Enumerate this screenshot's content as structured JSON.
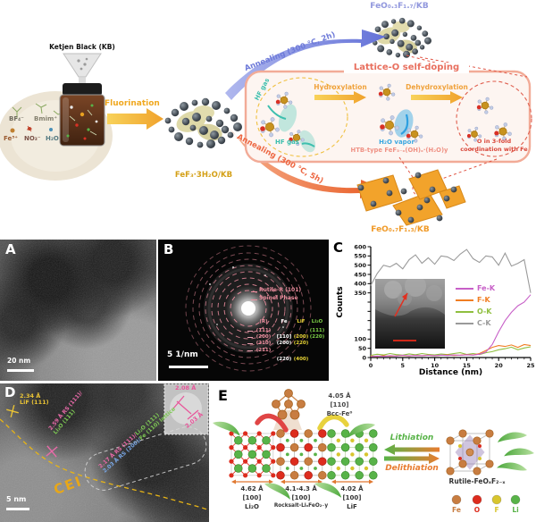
{
  "schematic": {
    "kb_label": "Ketjen Black (KB)",
    "ion_bf4": "BF₄⁻",
    "ion_bmim": "Bmim⁺",
    "ion_fe": "Fe³⁺",
    "ion_no3": "NO₃⁻",
    "ion_h2o": "H₂O",
    "fluorination": "Fluorination",
    "fef3_label": "FeF₃·3H₂O/KB",
    "anneal_top": "Annealing (300 ℃, 2h)",
    "product_top": "FeO₀.₃F₁.₇/KB",
    "anneal_bottom": "Annealing (300 ℃, 5h)",
    "product_bottom": "FeO₀.₇F₁.₃/KB",
    "box_title": "Lattice-O self-doping",
    "hf_gas_1": "HF gas",
    "hf_gas_2": "HF gas",
    "hydroxylation": "Hydroxylation",
    "dehydroxylation": "Dehydroxylation",
    "h2o_vapor": "H₂O vapor",
    "htb": "HTB-type FeF₃₋ₓ(OH)ₓ·(H₂O)y",
    "o_coord_1": "O in 3-fold",
    "o_coord_2": "coordination with Fe"
  },
  "panel_a": {
    "label": "A",
    "scalebar": "20 nm"
  },
  "panel_b": {
    "label": "B",
    "scalebar": "5 1/nm",
    "ring_note_1": "Rutile-R (101)",
    "ring_note_2": "Spinel Phase",
    "table_headers": {
      "r": "(R)",
      "fe": "Fe",
      "lif": "LiF",
      "li2o": "Li₂O"
    },
    "table_rows": [
      {
        "r": "(111)",
        "fe": "",
        "lif": "",
        "li2o": "(111)"
      },
      {
        "r": "(200)",
        "fe": "[110]",
        "lif": "(200)",
        "li2o": "(220)"
      },
      {
        "r": "(210)",
        "fe": "(200)",
        "lif": "(220)",
        "li2o": ""
      },
      {
        "r": "(211)",
        "fe": "",
        "lif": "",
        "li2o": ""
      },
      {
        "r": "",
        "fe": "(220)",
        "lif": "(400)",
        "li2o": ""
      }
    ]
  },
  "chart_data": {
    "type": "line",
    "panel": "C",
    "xlabel": "Distance (nm)",
    "ylabel": "Counts",
    "xlim": [
      0,
      25
    ],
    "ylim": [
      0,
      600
    ],
    "xticks": [
      0,
      5,
      10,
      15,
      20,
      25
    ],
    "ytick_step": 50,
    "ytick_labels_shown": [
      600,
      550,
      500,
      450,
      400,
      350,
      100,
      50,
      0
    ],
    "legend_position": "right-middle",
    "x": [
      0,
      1,
      2,
      3,
      4,
      5,
      6,
      7,
      8,
      9,
      10,
      11,
      12,
      13,
      14,
      15,
      16,
      17,
      18,
      19,
      20,
      21,
      22,
      23,
      24,
      25
    ],
    "series": [
      {
        "name": "Fe-K",
        "color": "#c75fc7",
        "values": [
          5,
          8,
          6,
          10,
          8,
          12,
          9,
          11,
          10,
          12,
          10,
          13,
          11,
          14,
          12,
          15,
          13,
          18,
          30,
          70,
          140,
          200,
          245,
          280,
          300,
          340
        ]
      },
      {
        "name": "F-K",
        "color": "#f07d22",
        "values": [
          8,
          6,
          10,
          7,
          9,
          11,
          8,
          12,
          10,
          13,
          9,
          12,
          14,
          11,
          13,
          16,
          14,
          22,
          38,
          55,
          65,
          60,
          68,
          55,
          70,
          65
        ]
      },
      {
        "name": "O-K",
        "color": "#8fbf3f",
        "values": [
          12,
          18,
          14,
          22,
          16,
          13,
          20,
          15,
          22,
          17,
          14,
          19,
          16,
          22,
          26,
          17,
          22,
          16,
          26,
          32,
          42,
          48,
          56,
          42,
          52,
          58
        ]
      },
      {
        "name": "C-K",
        "color": "#9a9a9a",
        "values": [
          390,
          455,
          500,
          490,
          510,
          480,
          530,
          556,
          510,
          540,
          505,
          550,
          545,
          525,
          560,
          585,
          535,
          515,
          550,
          545,
          500,
          565,
          495,
          510,
          530,
          350
        ]
      }
    ]
  },
  "panel_d": {
    "label": "D",
    "scalebar": "5 nm",
    "cei": "CEI",
    "m1_line1": "2.34 Å",
    "m1_line2": "LiF (111)",
    "m2_line1": "2.59 Å RS (111)/",
    "m2_line2": "Li₂O (111)",
    "m3a_p1": "2.17 Å RS (111)/",
    "m3a_p2": "Li₂O (111)",
    "m3b_p1": "2.03 Å RS (200)/",
    "m3b_p2": "Fe (110) lattice",
    "inset_d1": "2.08 Å",
    "inset_d2": "2.03 Å"
  },
  "panel_e": {
    "label": "E",
    "bcc_d": "4.05 Å",
    "bcc_dir": "[110]",
    "bcc_name": "Bcc-Fe⁰",
    "li2o_d": "4.62 Å",
    "li2o_dir": "[100]",
    "li2o_name": "Li₂O",
    "rs_d": "4.1-4.3 Å",
    "rs_dir": "[100]",
    "rs_name": "Rocksalt-LiₓFeO₂₋y",
    "lif_d": "4.02 Å",
    "lif_dir": "[100]",
    "lif_name": "LiF",
    "lithiation": "Lithiation",
    "delithiation": "Delithiation",
    "rutile_name": "Rutile-FeOₓF₂₋ₓ",
    "legend": [
      {
        "name": "Fe",
        "color": "#c87d41"
      },
      {
        "name": "O",
        "color": "#dd2c1e"
      },
      {
        "name": "F",
        "color": "#d8c52e"
      },
      {
        "name": "Li",
        "color": "#58b348"
      }
    ]
  }
}
